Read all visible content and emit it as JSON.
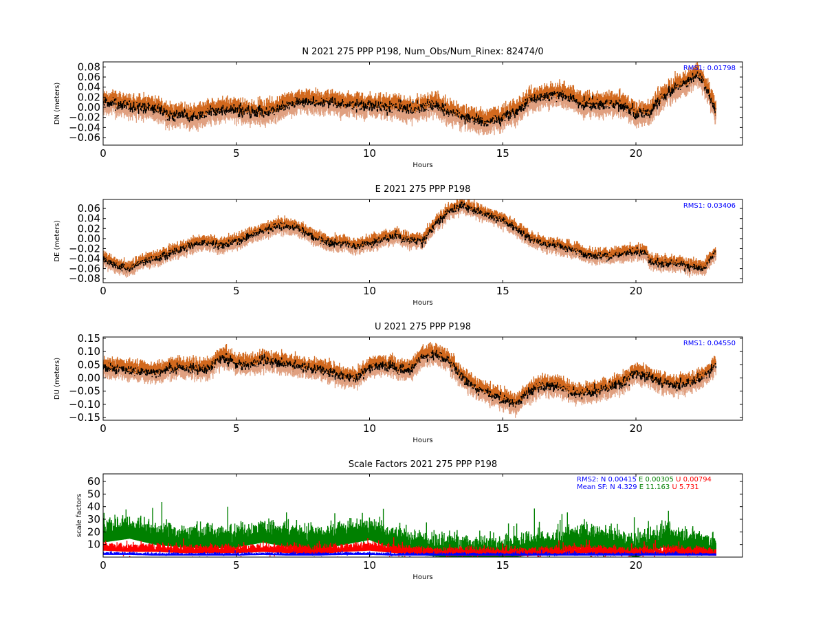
{
  "figure": {
    "colors": {
      "upper_band": "#d2691e",
      "lower_band": "#e0a080",
      "mean_line": "#000000",
      "rms_text": "#0000ff",
      "sf_N": "#0000ff",
      "sf_E": "#008000",
      "sf_U": "#ff0000"
    }
  },
  "chart_data": [
    {
      "type": "line",
      "title": "N 2021 275 PPP  P198, Num_Obs/Num_Rinex: 82474/0",
      "xlabel": "Hours",
      "ylabel": "DN (meters)",
      "xlim": [
        0,
        24
      ],
      "ylim": [
        -0.075,
        0.09
      ],
      "xticks": [
        0,
        5,
        10,
        15,
        20
      ],
      "xtick_labels": [
        "0",
        "5",
        "10",
        "15",
        "20"
      ],
      "yticks": [
        0.08,
        0.06,
        0.04,
        0.02,
        0.0,
        -0.02,
        -0.04,
        -0.06
      ],
      "ytick_labels": [
        "0.08",
        "0.06",
        "0.04",
        "0.02",
        "0.00",
        "−0.02",
        "−0.04",
        "−0.06"
      ],
      "annotation": "RMS1:  0.01798",
      "band_halfwidth": 0.018,
      "noise": 0.007,
      "x": [
        0,
        0.5,
        1,
        1.5,
        2,
        2.5,
        3,
        3.5,
        4,
        4.5,
        5,
        5.5,
        6,
        6.5,
        7,
        7.5,
        8,
        8.5,
        9,
        9.5,
        10,
        10.5,
        11,
        11.5,
        12,
        12.5,
        13,
        13.5,
        14,
        14.5,
        15,
        15.5,
        16,
        16.5,
        17,
        17.5,
        18,
        18.5,
        19,
        19.5,
        20,
        20.5,
        21,
        21.5,
        22,
        22.3,
        22.6,
        23
      ],
      "y": [
        0.01,
        0.005,
        0.0,
        0.0,
        -0.005,
        -0.015,
        -0.015,
        -0.02,
        -0.01,
        -0.005,
        -0.005,
        -0.01,
        -0.01,
        -0.005,
        0.005,
        0.01,
        0.01,
        0.01,
        0.005,
        0.005,
        0.005,
        0.0,
        0.0,
        -0.005,
        0.0,
        0.005,
        -0.01,
        -0.02,
        -0.025,
        -0.03,
        -0.02,
        -0.01,
        0.015,
        0.02,
        0.025,
        0.02,
        0.005,
        0.005,
        0.005,
        0.005,
        -0.015,
        -0.01,
        0.02,
        0.04,
        0.05,
        0.065,
        0.045,
        -0.01
      ]
    },
    {
      "type": "line",
      "title": "E 2021 275 PPP  P198",
      "xlabel": "Hours",
      "ylabel": "DE (meters)",
      "xlim": [
        0,
        24
      ],
      "ylim": [
        -0.088,
        0.078
      ],
      "xticks": [
        0,
        5,
        10,
        15,
        20
      ],
      "xtick_labels": [
        "0",
        "5",
        "10",
        "15",
        "20"
      ],
      "yticks": [
        0.06,
        0.04,
        0.02,
        0.0,
        -0.02,
        -0.04,
        -0.06,
        -0.08
      ],
      "ytick_labels": [
        "0.06",
        "0.04",
        "0.02",
        "0.00",
        "−0.02",
        "−0.04",
        "−0.06",
        "−0.08"
      ],
      "annotation": "RMS1:  0.03406",
      "band_halfwidth": 0.012,
      "noise": 0.005,
      "x": [
        0,
        0.5,
        1,
        1.5,
        2,
        2.5,
        3,
        3.5,
        4,
        4.5,
        5,
        5.5,
        6,
        6.5,
        7,
        7.5,
        8,
        8.5,
        9,
        9.5,
        10,
        10.5,
        11,
        11.5,
        12,
        12.5,
        13,
        13.5,
        14,
        14.5,
        15,
        15.5,
        16,
        16.5,
        17,
        17.5,
        18,
        18.5,
        19,
        19.5,
        20,
        20.4,
        20.5,
        21,
        21.5,
        22,
        22.5,
        23
      ],
      "y": [
        -0.04,
        -0.055,
        -0.06,
        -0.045,
        -0.04,
        -0.03,
        -0.02,
        -0.01,
        -0.01,
        -0.015,
        -0.005,
        0.005,
        0.015,
        0.025,
        0.025,
        0.015,
        0.0,
        -0.01,
        -0.01,
        -0.015,
        -0.01,
        0.0,
        0.005,
        -0.005,
        -0.005,
        0.03,
        0.055,
        0.065,
        0.055,
        0.045,
        0.035,
        0.02,
        0.0,
        -0.01,
        -0.015,
        -0.02,
        -0.03,
        -0.035,
        -0.035,
        -0.03,
        -0.025,
        -0.03,
        -0.045,
        -0.05,
        -0.05,
        -0.055,
        -0.06,
        -0.03
      ]
    },
    {
      "type": "line",
      "title": "U 2021 275 PPP  P198",
      "xlabel": "Hours",
      "ylabel": "DU (meters)",
      "xlim": [
        0,
        24
      ],
      "ylim": [
        -0.16,
        0.155
      ],
      "xticks": [
        0,
        5,
        10,
        15,
        20
      ],
      "xtick_labels": [
        "0",
        "5",
        "10",
        "15",
        "20"
      ],
      "yticks": [
        0.15,
        0.1,
        0.05,
        0.0,
        -0.05,
        -0.1,
        -0.15
      ],
      "ytick_labels": [
        "0.15",
        "0.10",
        "0.05",
        "0.00",
        "−0.05",
        "−0.10",
        "−0.15"
      ],
      "annotation": "RMS1:  0.04550",
      "band_halfwidth": 0.03,
      "noise": 0.012,
      "x": [
        0,
        0.5,
        1,
        1.5,
        2,
        2.5,
        3,
        3.5,
        4,
        4.5,
        5,
        5.5,
        6,
        6.5,
        7,
        7.5,
        8,
        8.5,
        9,
        9.5,
        10,
        10.5,
        11,
        11.5,
        12,
        12.5,
        13,
        13.5,
        14,
        14.5,
        15,
        15.5,
        16,
        16.5,
        17,
        17.5,
        18,
        18.5,
        19,
        19.5,
        20,
        20.5,
        21,
        21.5,
        22,
        22.5,
        23
      ],
      "y": [
        0.04,
        0.035,
        0.03,
        0.025,
        0.02,
        0.035,
        0.04,
        0.03,
        0.035,
        0.08,
        0.05,
        0.05,
        0.065,
        0.06,
        0.05,
        0.04,
        0.035,
        0.025,
        0.005,
        0.0,
        0.04,
        0.05,
        0.035,
        0.03,
        0.08,
        0.09,
        0.06,
        0.0,
        -0.04,
        -0.06,
        -0.08,
        -0.1,
        -0.05,
        -0.03,
        -0.03,
        -0.05,
        -0.06,
        -0.05,
        -0.035,
        -0.02,
        0.02,
        0.0,
        -0.02,
        -0.03,
        -0.02,
        0.0,
        0.05
      ]
    },
    {
      "type": "scatter",
      "title": "Scale Factors 2021 275 PPP  P198",
      "xlabel": "Hours",
      "ylabel": "scale factors",
      "xlim": [
        0,
        24
      ],
      "ylim": [
        0,
        66
      ],
      "xticks": [
        0,
        5,
        10,
        15,
        20
      ],
      "xtick_labels": [
        "0",
        "5",
        "10",
        "15",
        "20"
      ],
      "yticks": [
        60,
        50,
        40,
        30,
        20,
        10
      ],
      "ytick_labels": [
        "60",
        "50",
        "40",
        "30",
        "20",
        "10"
      ],
      "annotations": [
        {
          "label": "RMS2: N",
          "N": "0.00415",
          "E_label": "E",
          "E": "0.00305",
          "U_label": "U",
          "U": "0.00794"
        },
        {
          "label": "Mean SF: N",
          "N": "4.329",
          "E_label": "E",
          "E": "11.163",
          "U_label": "U",
          "U": "5.731"
        }
      ],
      "series": [
        {
          "name": "E",
          "x": [
            0,
            1,
            2,
            3,
            4,
            5,
            6,
            7,
            8,
            9,
            10,
            11,
            12,
            13,
            14,
            15,
            16,
            17,
            18,
            19,
            20,
            21,
            22,
            23
          ],
          "y": [
            22,
            25,
            20,
            18,
            17,
            18,
            22,
            18,
            16,
            20,
            24,
            16,
            12,
            10,
            9,
            9,
            12,
            14,
            18,
            16,
            10,
            18,
            15,
            12
          ],
          "spread": 8
        },
        {
          "name": "U",
          "x": [
            0,
            1,
            2,
            3,
            4,
            5,
            6,
            7,
            8,
            9,
            10,
            11,
            12,
            13,
            14,
            15,
            16,
            17,
            18,
            19,
            20,
            21,
            22,
            23
          ],
          "y": [
            9,
            8,
            8,
            7,
            7,
            7,
            8,
            7,
            6,
            8,
            9,
            7,
            6,
            5,
            5,
            5,
            5,
            6,
            7,
            6,
            5,
            6,
            6,
            5
          ],
          "spread": 3
        },
        {
          "name": "N",
          "x": [
            0,
            1,
            2,
            3,
            4,
            5,
            6,
            7,
            8,
            9,
            10,
            11,
            12,
            13,
            14,
            15,
            16,
            17,
            18,
            19,
            20,
            21,
            22,
            23
          ],
          "y": [
            3,
            3,
            2.5,
            2.5,
            2.5,
            2.5,
            3,
            2.5,
            2.5,
            3,
            3,
            2.5,
            2.5,
            2.5,
            2.5,
            2.5,
            2.5,
            2.5,
            2.5,
            2.5,
            2.5,
            2.5,
            2.5,
            2.5
          ],
          "spread": 1
        }
      ]
    }
  ]
}
